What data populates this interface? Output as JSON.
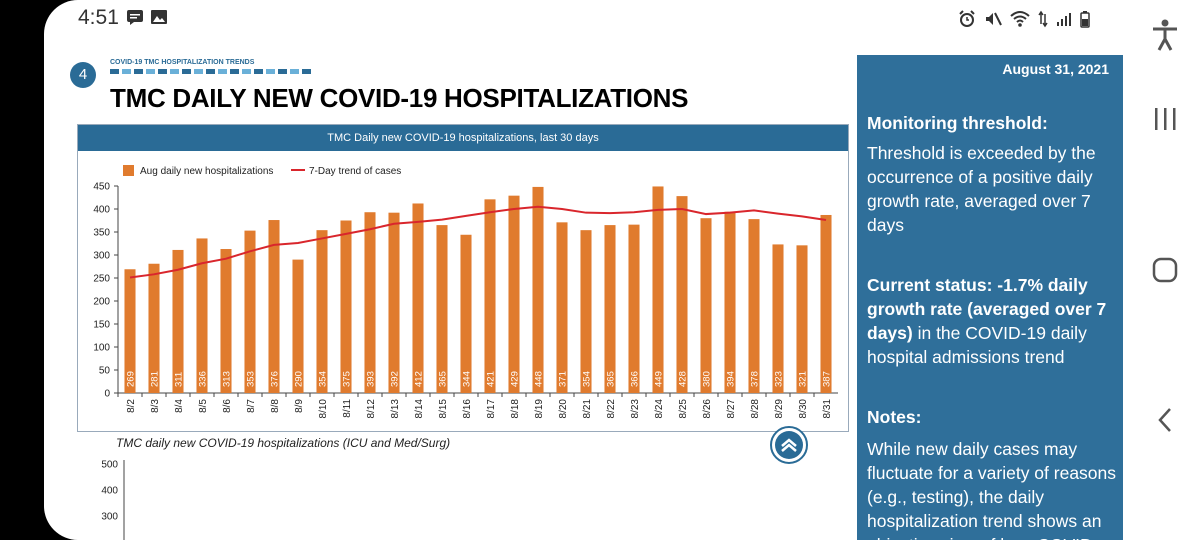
{
  "status_bar": {
    "time": "4:51"
  },
  "page": {
    "section_number": "4",
    "section_label": "COVID-19 TMC HOSPITALIZATION TRENDS",
    "title": "TMC DAILY NEW COVID-19 HOSPITALIZATIONS"
  },
  "colors": {
    "bar": "#e07b2e",
    "trend": "#d9262c",
    "header": "#2a6b96",
    "panel": "#2f6f9a"
  },
  "chart_data": [
    {
      "type": "bar",
      "title": "TMC Daily new COVID-19 hospitalizations, last 30 days",
      "categories": [
        "8/2",
        "8/3",
        "8/4",
        "8/5",
        "8/6",
        "8/7",
        "8/8",
        "8/9",
        "8/10",
        "8/11",
        "8/12",
        "8/13",
        "8/14",
        "8/15",
        "8/16",
        "8/17",
        "8/18",
        "8/19",
        "8/20",
        "8/21",
        "8/22",
        "8/23",
        "8/24",
        "8/25",
        "8/26",
        "8/27",
        "8/28",
        "8/29",
        "8/30",
        "8/31"
      ],
      "series": [
        {
          "name": "Aug daily new hospitalizations",
          "type": "bar",
          "values": [
            269,
            281,
            311,
            336,
            313,
            353,
            376,
            290,
            354,
            375,
            393,
            392,
            412,
            365,
            344,
            421,
            429,
            448,
            371,
            354,
            365,
            366,
            449,
            428,
            380,
            394,
            378,
            323,
            321,
            387
          ]
        },
        {
          "name": "7-Day trend of cases",
          "type": "line",
          "values": [
            251,
            258,
            268,
            282,
            292,
            308,
            322,
            326,
            336,
            346,
            356,
            368,
            372,
            377,
            385,
            393,
            400,
            405,
            400,
            392,
            391,
            393,
            398,
            400,
            389,
            392,
            397,
            390,
            384,
            376
          ]
        }
      ],
      "yticks": [
        0,
        50,
        100,
        150,
        200,
        250,
        300,
        350,
        400,
        450
      ],
      "ylim": [
        0,
        450
      ],
      "legend": "top-left",
      "grid": false
    },
    {
      "type": "bar",
      "title": "TMC daily new COVID-19 hospitalizations (ICU and Med/Surg)",
      "yticks": [
        300,
        400,
        500
      ],
      "ylim": [
        200,
        500
      ]
    }
  ],
  "side_panel": {
    "date": "August 31, 2021",
    "threshold_heading": "Monitoring threshold:",
    "threshold_text": "Threshold is exceeded by the occurrence of a positive daily growth rate, averaged over 7 days",
    "status_bold": "Current status: -1.7% daily growth rate (averaged over 7 days)",
    "status_rest": " in the COVID-19 daily hospital admissions trend",
    "notes_heading": "Notes:",
    "notes_text": "While new daily cases may fluctuate for a variety of reasons (e.g., testing), the daily hospitalization trend shows an objective view of how COVID-"
  },
  "icons": {
    "status_left": [
      "message-icon",
      "image-icon"
    ],
    "status_right": [
      "alarm-icon",
      "mute-icon",
      "wifi-icon",
      "data-icon",
      "signal-icon",
      "battery-icon"
    ],
    "navbar": [
      "accessibility-icon",
      "recents-icon",
      "home-icon",
      "back-icon"
    ]
  }
}
